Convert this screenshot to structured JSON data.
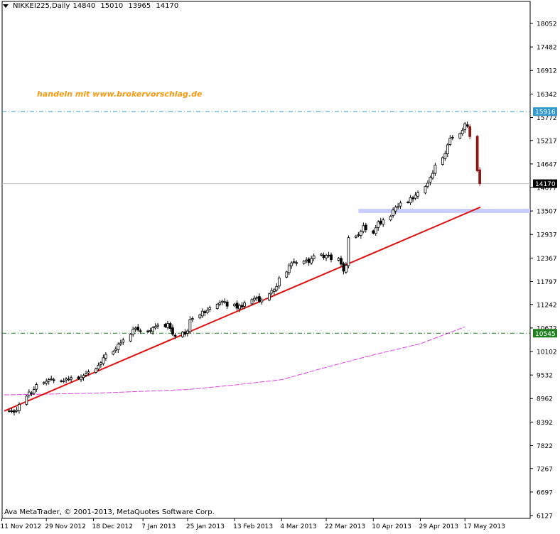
{
  "header": {
    "symbol": "NIKKEI225,Daily",
    "open": "14840",
    "high": "15010",
    "low": "13965",
    "close": "14170"
  },
  "annotation": "handeln mit www.brokervorschlag.de",
  "copyright": "Ava MetaTrader, © 2001-2013, MetaQuotes Software Corp.",
  "colors": {
    "background": "#ffffff",
    "candle_bull_body": "#ffffff",
    "candle_bear_body": "#000000",
    "candle_outline": "#000000",
    "last_candles_bear": "#8b1a1a",
    "trendline": "#e01010",
    "moving_average": "#e040e0",
    "resistance_line": "#3399cc",
    "support_line": "#208020",
    "highlight_band": "#c8ccff",
    "annotation": "#f59a10"
  },
  "chart_data": {
    "type": "candlestick",
    "title": "NIKKEI225,Daily",
    "x_tick_labels": [
      "11 Nov 2012",
      "29 Nov 2012",
      "18 Dec 2012",
      "7 Jan 2013",
      "25 Jan 2013",
      "13 Feb 2013",
      "4 Mar 2013",
      "22 Mar 2013",
      "10 Apr 2013",
      "29 Apr 2013",
      "17 May 2013"
    ],
    "y_tick_labels": [
      "18052",
      "17482",
      "16912",
      "16342",
      "15772",
      "15217",
      "14647",
      "14077",
      "13507",
      "12937",
      "12367",
      "11797",
      "11242",
      "10672",
      "10102",
      "9532",
      "8962",
      "8392",
      "7822",
      "7267",
      "6697",
      "6127"
    ],
    "ylim": [
      6127,
      18622
    ],
    "price_tags": [
      {
        "label": "15916",
        "value": 15916,
        "style": "resistance"
      },
      {
        "label": "14170",
        "value": 14170,
        "style": "last"
      },
      {
        "label": "10545",
        "value": 10545,
        "style": "support"
      }
    ],
    "trendline": {
      "start": {
        "date": "12 Nov 2012",
        "value": 8660
      },
      "end": {
        "date": "23 May 2013",
        "value": 13600
      }
    },
    "moving_average": [
      {
        "date": "12 Nov 2012",
        "value": 9050
      },
      {
        "date": "18 Dec 2012",
        "value": 9090
      },
      {
        "date": "25 Jan 2013",
        "value": 9180
      },
      {
        "date": "13 Feb 2013",
        "value": 9290
      },
      {
        "date": "4 Mar 2013",
        "value": 9420
      },
      {
        "date": "22 Mar 2013",
        "value": 9720
      },
      {
        "date": "10 Apr 2013",
        "value": 10020
      },
      {
        "date": "29 Apr 2013",
        "value": 10290
      },
      {
        "date": "17 May 2013",
        "value": 10700
      }
    ],
    "highlight_band": {
      "from": 13460,
      "to": 13560,
      "start_date": "4 Apr 2013"
    },
    "closes": [
      8670,
      8660,
      8630,
      8680,
      8820,
      9020,
      9120,
      9100,
      9180,
      9300,
      9350,
      9380,
      9420,
      9440,
      9400,
      9380,
      9390,
      9440,
      9430,
      9470,
      9440,
      9480,
      9520,
      9560,
      9610,
      9680,
      9770,
      9830,
      9950,
      10030,
      10100,
      10160,
      10280,
      10310,
      10380,
      10520,
      10640,
      10670,
      10620,
      10600,
      10580,
      10610,
      10680,
      10710,
      10740,
      10700,
      10780,
      10660,
      10520,
      10470,
      10570,
      10520,
      10600,
      10880,
      10900,
      10990,
      11080,
      11040,
      11100,
      11160,
      11250,
      11280,
      11320,
      11310,
      11200,
      11250,
      11150,
      11220,
      11180,
      11280,
      11360,
      11390,
      11410,
      11320,
      11350,
      11500,
      11580,
      11600,
      11680,
      11880,
      12030,
      12180,
      12250,
      12280,
      12240,
      12290,
      12320,
      12260,
      12350,
      12420,
      12460,
      12380,
      12430,
      12420,
      12330,
      12360,
      12220,
      12050,
      12190,
      12860,
      12900,
      12930,
      13010,
      13150,
      13050,
      12970,
      13100,
      13240,
      13200,
      13290,
      13380,
      13530,
      13600,
      13620,
      13700,
      13720,
      13830,
      13800,
      13890,
      13950,
      14100,
      14180,
      14320,
      14420,
      14620,
      14800,
      14900,
      15110,
      15270,
      15290,
      15380,
      15460,
      15620,
      15560,
      15310,
      14480,
      14170
    ],
    "markers": {
      "high_label": "15916"
    }
  },
  "dates": {
    "first": "12 Nov 2012",
    "last": "23 May 2013"
  }
}
